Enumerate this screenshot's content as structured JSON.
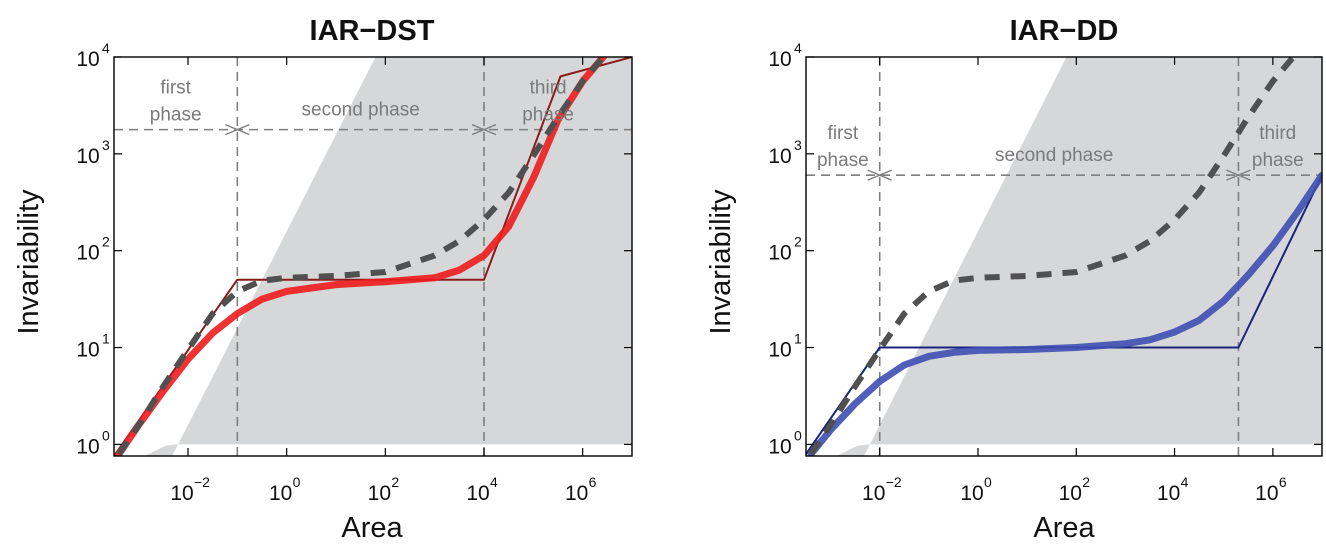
{
  "chart_data": [
    {
      "type": "line",
      "title": "IAR−DST",
      "xlabel": "Area",
      "ylabel": "Invariability",
      "xscale": "log",
      "yscale": "log",
      "xlim_log10": [
        -3.5,
        7.0
      ],
      "ylim_log10": [
        -0.12,
        4.0
      ],
      "x_ticks": [
        {
          "base": "10",
          "exp": "−2"
        },
        {
          "base": "10",
          "exp": "0"
        },
        {
          "base": "10",
          "exp": "2"
        },
        {
          "base": "10",
          "exp": "4"
        },
        {
          "base": "10",
          "exp": "6"
        }
      ],
      "x_tick_log10": [
        -2,
        0,
        2,
        4,
        6
      ],
      "y_ticks": [
        {
          "base": "10",
          "exp": "0"
        },
        {
          "base": "10",
          "exp": "1"
        },
        {
          "base": "10",
          "exp": "2"
        },
        {
          "base": "10",
          "exp": "3"
        },
        {
          "base": "10",
          "exp": "4"
        }
      ],
      "y_tick_log10": [
        0,
        1,
        2,
        3,
        4
      ],
      "phase_boundaries_log10": [
        -1,
        4
      ],
      "phase_label_y_log10": 3.25,
      "phase_labels": [
        {
          "lines": [
            "first",
            "phase"
          ],
          "x_log10": -2.25
        },
        {
          "lines": [
            "second phase"
          ],
          "x_log10": 1.5
        },
        {
          "lines": [
            "third",
            "phase"
          ],
          "x_log10": 5.3
        }
      ],
      "series": [
        {
          "role": "thin-piecewise",
          "color": "#8b1a1a",
          "x_log10": [
            -3.5,
            -1,
            4,
            5.55,
            7.0
          ],
          "y_log10": [
            -0.12,
            1.7,
            1.7,
            3.8,
            4.0
          ]
        },
        {
          "role": "thick-curve",
          "color": "#ee1c1c",
          "x_log10": [
            -3.4,
            -3.0,
            -2.5,
            -2.0,
            -1.5,
            -1.0,
            -0.5,
            0,
            1,
            2,
            3,
            3.5,
            4.0,
            4.5,
            5.0,
            5.5,
            6.0,
            6.5
          ],
          "y_log10": [
            -0.1,
            0.2,
            0.55,
            0.88,
            1.15,
            1.35,
            1.5,
            1.58,
            1.65,
            1.68,
            1.72,
            1.8,
            1.95,
            2.25,
            2.75,
            3.35,
            3.75,
            4.05
          ]
        },
        {
          "role": "dashed-curve",
          "color": "#505050",
          "x_log10": [
            -3.4,
            -3.0,
            -2.5,
            -2.0,
            -1.5,
            -1.0,
            -0.5,
            0,
            1,
            2,
            3,
            3.5,
            4.0,
            4.5,
            5.0,
            5.5,
            6.0,
            6.5
          ],
          "y_log10": [
            -0.1,
            0.2,
            0.6,
            0.98,
            1.35,
            1.58,
            1.69,
            1.72,
            1.74,
            1.78,
            1.95,
            2.1,
            2.32,
            2.6,
            2.98,
            3.38,
            3.75,
            4.05
          ]
        }
      ],
      "colors": {
        "feasible_region": "#d6d7d9",
        "boundary": "#8a8a8a"
      }
    },
    {
      "type": "line",
      "title": "IAR−DD",
      "xlabel": "Area",
      "ylabel": "Invariability",
      "xscale": "log",
      "yscale": "log",
      "xlim_log10": [
        -3.5,
        7.0
      ],
      "ylim_log10": [
        -0.12,
        4.0
      ],
      "x_ticks": [
        {
          "base": "10",
          "exp": "−2"
        },
        {
          "base": "10",
          "exp": "0"
        },
        {
          "base": "10",
          "exp": "2"
        },
        {
          "base": "10",
          "exp": "4"
        },
        {
          "base": "10",
          "exp": "6"
        }
      ],
      "x_tick_log10": [
        -2,
        0,
        2,
        4,
        6
      ],
      "y_ticks": [
        {
          "base": "10",
          "exp": "0"
        },
        {
          "base": "10",
          "exp": "1"
        },
        {
          "base": "10",
          "exp": "2"
        },
        {
          "base": "10",
          "exp": "3"
        },
        {
          "base": "10",
          "exp": "4"
        }
      ],
      "y_tick_log10": [
        0,
        1,
        2,
        3,
        4
      ],
      "phase_boundaries_log10": [
        -2,
        5.3
      ],
      "phase_label_y_log10": 2.78,
      "phase_labels": [
        {
          "lines": [
            "first",
            "phase"
          ],
          "x_log10": -2.75
        },
        {
          "lines": [
            "second phase"
          ],
          "x_log10": 1.55
        },
        {
          "lines": [
            "third",
            "phase"
          ],
          "x_log10": 6.1
        }
      ],
      "series": [
        {
          "role": "thin-piecewise",
          "color": "#1a237e",
          "x_log10": [
            -3.5,
            -2,
            5.3,
            7.0
          ],
          "y_log10": [
            -0.1,
            1.0,
            1.0,
            2.78
          ]
        },
        {
          "role": "thick-curve",
          "color": "#3d4fb3",
          "x_log10": [
            -3.4,
            -3.0,
            -2.5,
            -2.0,
            -1.5,
            -1.0,
            -0.5,
            0,
            1,
            2,
            3,
            3.5,
            4.0,
            4.5,
            5.0,
            5.5,
            6.0,
            6.5,
            7.0
          ],
          "y_log10": [
            -0.1,
            0.15,
            0.42,
            0.65,
            0.82,
            0.91,
            0.95,
            0.97,
            0.98,
            1.0,
            1.04,
            1.08,
            1.16,
            1.28,
            1.48,
            1.75,
            2.05,
            2.4,
            2.78
          ]
        },
        {
          "role": "dashed-curve",
          "color": "#505050",
          "x_log10": [
            -3.4,
            -3.0,
            -2.5,
            -2.0,
            -1.5,
            -1.0,
            -0.5,
            0,
            1,
            2,
            3,
            3.5,
            4.0,
            4.5,
            5.0,
            5.5,
            6.0,
            6.5
          ],
          "y_log10": [
            -0.1,
            0.2,
            0.6,
            0.98,
            1.35,
            1.58,
            1.69,
            1.72,
            1.74,
            1.78,
            1.95,
            2.1,
            2.32,
            2.6,
            2.98,
            3.38,
            3.75,
            4.05
          ]
        }
      ],
      "colors": {
        "feasible_region": "#d6d7d9",
        "boundary": "#8a8a8a"
      }
    }
  ]
}
